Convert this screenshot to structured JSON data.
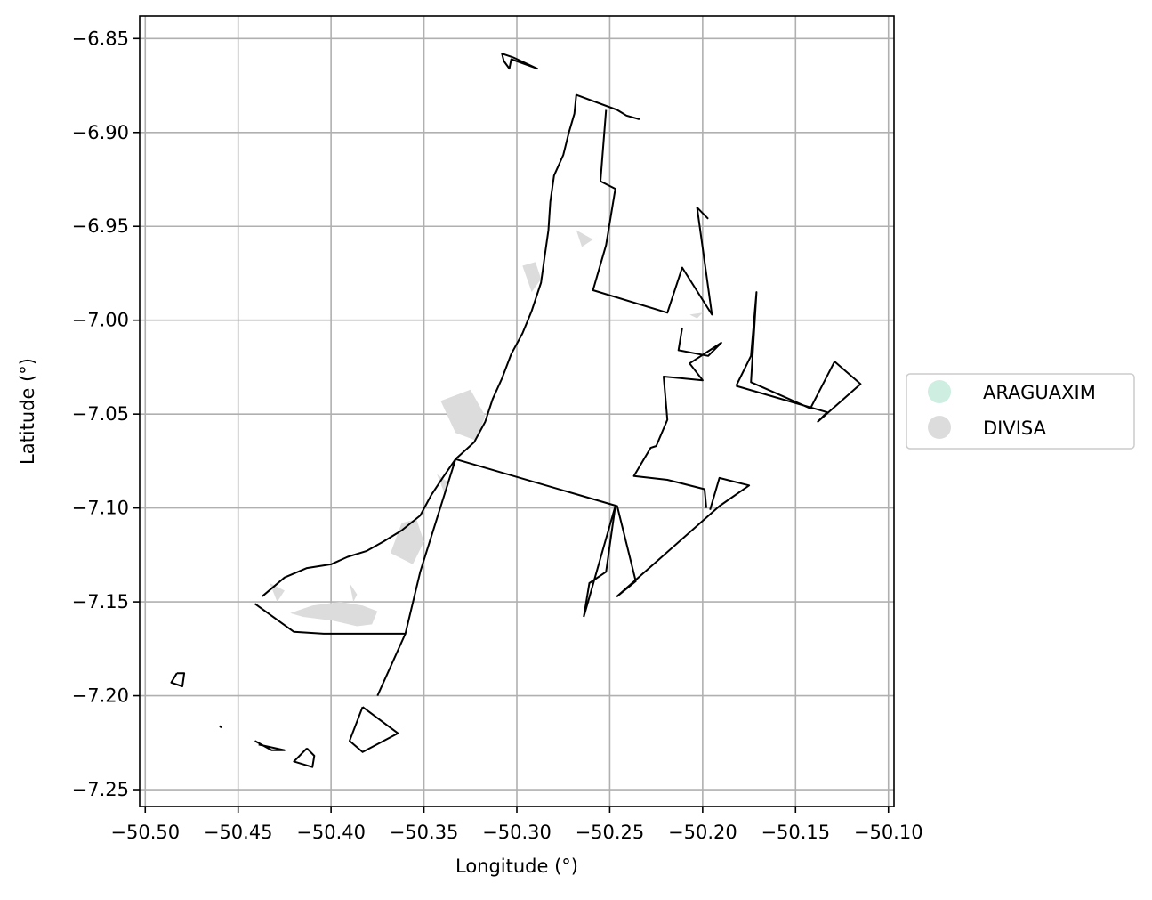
{
  "chart_data": {
    "type": "map",
    "xlabel": "Longitude (°)",
    "ylabel": "Latitude (°)",
    "xlim": [
      -50.503,
      -50.097
    ],
    "ylim": [
      -7.259,
      -6.838
    ],
    "grid": true,
    "x_ticks": [
      {
        "value": -50.5,
        "label": "−50.50"
      },
      {
        "value": -50.45,
        "label": "−50.45"
      },
      {
        "value": -50.4,
        "label": "−50.40"
      },
      {
        "value": -50.35,
        "label": "−50.35"
      },
      {
        "value": -50.3,
        "label": "−50.30"
      },
      {
        "value": -50.25,
        "label": "−50.25"
      },
      {
        "value": -50.2,
        "label": "−50.20"
      },
      {
        "value": -50.15,
        "label": "−50.15"
      },
      {
        "value": -50.1,
        "label": "−50.10"
      }
    ],
    "y_ticks": [
      {
        "value": -6.85,
        "label": "−6.85"
      },
      {
        "value": -6.9,
        "label": "−6.90"
      },
      {
        "value": -6.95,
        "label": "−6.95"
      },
      {
        "value": -7.0,
        "label": "−7.00"
      },
      {
        "value": -7.05,
        "label": "−7.05"
      },
      {
        "value": -7.1,
        "label": "−7.10"
      },
      {
        "value": -7.15,
        "label": "−7.15"
      },
      {
        "value": -7.2,
        "label": "−7.20"
      },
      {
        "value": -7.25,
        "label": "−7.25"
      }
    ],
    "legend": {
      "placement": "center-right outside",
      "entries": [
        {
          "label": "ARAGUAXIM",
          "color": "#cdeee0"
        },
        {
          "label": "DIVISA",
          "color": "#dcdcdc"
        }
      ]
    },
    "boundaries": [
      [
        [
          -50.302,
          -6.86
        ],
        [
          -50.308,
          -6.858
        ],
        [
          -50.307,
          -6.862
        ],
        [
          -50.304,
          -6.866
        ],
        [
          -50.303,
          -6.861
        ],
        [
          -50.289,
          -6.866
        ],
        [
          -50.302,
          -6.86
        ]
      ],
      [
        [
          -50.437,
          -7.147
        ],
        [
          -50.425,
          -7.137
        ],
        [
          -50.413,
          -7.132
        ],
        [
          -50.4,
          -7.13
        ],
        [
          -50.391,
          -7.126
        ],
        [
          -50.381,
          -7.123
        ],
        [
          -50.372,
          -7.118
        ],
        [
          -50.362,
          -7.112
        ],
        [
          -50.352,
          -7.104
        ],
        [
          -50.346,
          -7.093
        ],
        [
          -50.34,
          -7.084
        ],
        [
          -50.333,
          -7.074
        ],
        [
          -50.323,
          -7.065
        ],
        [
          -50.317,
          -7.054
        ],
        [
          -50.313,
          -7.042
        ],
        [
          -50.308,
          -7.031
        ],
        [
          -50.303,
          -7.018
        ],
        [
          -50.297,
          -7.007
        ],
        [
          -50.292,
          -6.995
        ],
        [
          -50.287,
          -6.98
        ],
        [
          -50.285,
          -6.966
        ],
        [
          -50.283,
          -6.952
        ],
        [
          -50.282,
          -6.937
        ],
        [
          -50.28,
          -6.923
        ],
        [
          -50.275,
          -6.912
        ],
        [
          -50.272,
          -6.9
        ],
        [
          -50.269,
          -6.89
        ],
        [
          -50.268,
          -6.88
        ],
        [
          -50.246,
          -6.888
        ],
        [
          -50.241,
          -6.891
        ],
        [
          -50.234,
          -6.893
        ]
      ],
      [
        [
          -50.252,
          -6.888
        ],
        [
          -50.255,
          -6.926
        ],
        [
          -50.247,
          -6.93
        ],
        [
          -50.252,
          -6.96
        ],
        [
          -50.259,
          -6.984
        ],
        [
          -50.219,
          -6.996
        ],
        [
          -50.211,
          -6.972
        ],
        [
          -50.195,
          -6.997
        ],
        [
          -50.203,
          -6.94
        ],
        [
          -50.197,
          -6.946
        ]
      ],
      [
        [
          -50.333,
          -7.074
        ],
        [
          -50.246,
          -7.099
        ],
        [
          -50.236,
          -7.139
        ],
        [
          -50.246,
          -7.147
        ],
        [
          -50.191,
          -7.099
        ],
        [
          -50.175,
          -7.088
        ],
        [
          -50.191,
          -7.084
        ],
        [
          -50.196,
          -7.101
        ]
      ],
      [
        [
          -50.264,
          -7.158
        ],
        [
          -50.247,
          -7.099
        ],
        [
          -50.252,
          -7.134
        ],
        [
          -50.261,
          -7.14
        ],
        [
          -50.264,
          -7.158
        ]
      ],
      [
        [
          -50.441,
          -7.151
        ],
        [
          -50.42,
          -7.166
        ],
        [
          -50.404,
          -7.167
        ],
        [
          -50.36,
          -7.167
        ],
        [
          -50.352,
          -7.134
        ],
        [
          -50.333,
          -7.074
        ]
      ],
      [
        [
          -50.36,
          -7.167
        ],
        [
          -50.375,
          -7.2
        ]
      ],
      [
        [
          -50.383,
          -7.206
        ],
        [
          -50.39,
          -7.224
        ],
        [
          -50.383,
          -7.23
        ],
        [
          -50.364,
          -7.22
        ],
        [
          -50.383,
          -7.206
        ]
      ],
      [
        [
          -50.413,
          -7.228
        ],
        [
          -50.42,
          -7.235
        ],
        [
          -50.41,
          -7.238
        ],
        [
          -50.409,
          -7.232
        ],
        [
          -50.413,
          -7.228
        ]
      ],
      [
        [
          -50.441,
          -7.224
        ],
        [
          -50.432,
          -7.229
        ],
        [
          -50.425,
          -7.229
        ],
        [
          -50.439,
          -7.226
        ]
      ],
      [
        [
          -50.483,
          -7.188
        ],
        [
          -50.479,
          -7.188
        ],
        [
          -50.48,
          -7.195
        ],
        [
          -50.486,
          -7.193
        ],
        [
          -50.483,
          -7.188
        ]
      ],
      [
        [
          -50.46,
          -7.216
        ],
        [
          -50.459,
          -7.217
        ]
      ],
      [
        [
          -50.211,
          -7.004
        ],
        [
          -50.213,
          -7.016
        ],
        [
          -50.197,
          -7.019
        ],
        [
          -50.19,
          -7.012
        ],
        [
          -50.207,
          -7.023
        ],
        [
          -50.2,
          -7.032
        ],
        [
          -50.221,
          -7.03
        ],
        [
          -50.219,
          -7.053
        ],
        [
          -50.225,
          -7.067
        ],
        [
          -50.228,
          -7.068
        ],
        [
          -50.237,
          -7.083
        ],
        [
          -50.219,
          -7.085
        ],
        [
          -50.199,
          -7.09
        ],
        [
          -50.198,
          -7.1
        ]
      ],
      [
        [
          -50.182,
          -7.035
        ],
        [
          -50.174,
          -7.019
        ],
        [
          -50.171,
          -6.985
        ],
        [
          -50.174,
          -7.033
        ],
        [
          -50.142,
          -7.047
        ],
        [
          -50.129,
          -7.022
        ],
        [
          -50.115,
          -7.034
        ],
        [
          -50.138,
          -7.054
        ],
        [
          -50.133,
          -7.049
        ],
        [
          -50.182,
          -7.035
        ]
      ]
    ],
    "patches": [
      {
        "series": "DIVISA",
        "points": [
          [
            -50.422,
            -7.156
          ],
          [
            -50.415,
            -7.158
          ],
          [
            -50.399,
            -7.16
          ],
          [
            -50.386,
            -7.163
          ],
          [
            -50.378,
            -7.162
          ],
          [
            -50.375,
            -7.155
          ],
          [
            -50.383,
            -7.152
          ],
          [
            -50.395,
            -7.15
          ],
          [
            -50.41,
            -7.152
          ]
        ]
      },
      {
        "series": "DIVISA",
        "points": [
          [
            -50.341,
            -7.043
          ],
          [
            -50.325,
            -7.037
          ],
          [
            -50.317,
            -7.051
          ],
          [
            -50.322,
            -7.064
          ],
          [
            -50.333,
            -7.06
          ]
        ]
      },
      {
        "series": "DIVISA",
        "points": [
          [
            -50.354,
            -7.106
          ],
          [
            -50.35,
            -7.118
          ],
          [
            -50.356,
            -7.13
          ],
          [
            -50.368,
            -7.124
          ],
          [
            -50.362,
            -7.108
          ]
        ]
      },
      {
        "series": "DIVISA",
        "points": [
          [
            -50.297,
            -6.971
          ],
          [
            -50.292,
            -6.985
          ],
          [
            -50.287,
            -6.978
          ],
          [
            -50.29,
            -6.969
          ]
        ]
      },
      {
        "series": "DIVISA",
        "points": [
          [
            -50.268,
            -6.952
          ],
          [
            -50.259,
            -6.957
          ],
          [
            -50.265,
            -6.961
          ]
        ]
      },
      {
        "series": "DIVISA",
        "points": [
          [
            -50.343,
            -7.082
          ],
          [
            -50.336,
            -7.087
          ],
          [
            -50.339,
            -7.092
          ]
        ]
      },
      {
        "series": "DIVISA",
        "points": [
          [
            -50.433,
            -7.14
          ],
          [
            -50.425,
            -7.144
          ],
          [
            -50.429,
            -7.15
          ]
        ]
      },
      {
        "series": "DIVISA",
        "points": [
          [
            -50.39,
            -7.14
          ],
          [
            -50.386,
            -7.146
          ],
          [
            -50.388,
            -7.15
          ]
        ]
      },
      {
        "series": "DIVISA",
        "points": [
          [
            -50.207,
            -6.997
          ],
          [
            -50.2,
            -6.996
          ],
          [
            -50.203,
            -6.999
          ]
        ]
      }
    ]
  }
}
